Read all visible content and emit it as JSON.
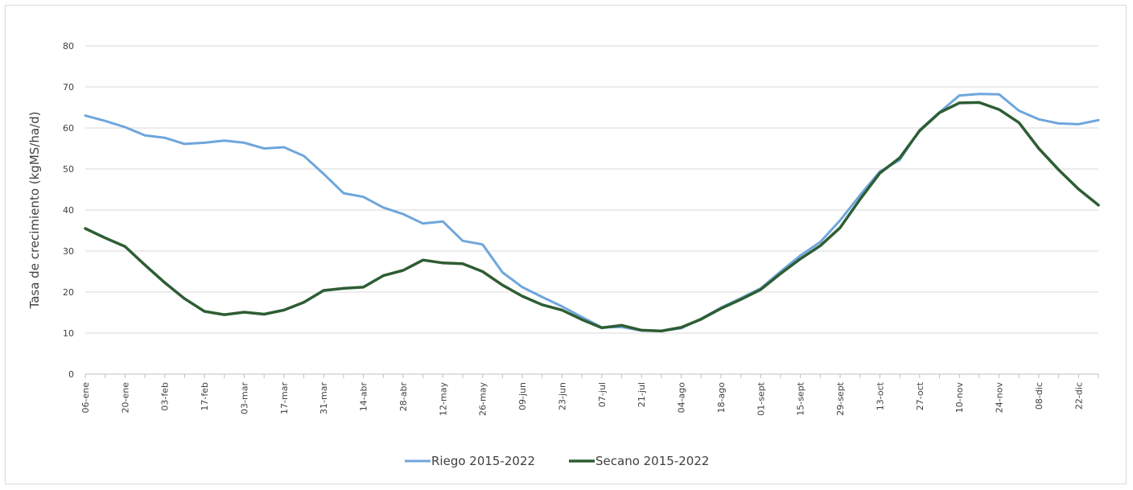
{
  "chart_data": {
    "type": "line",
    "title": "",
    "xlabel": "",
    "ylabel": "Tasa de crecimiento  (kgMS/ha/d)",
    "ylim": [
      0,
      80
    ],
    "yticks": [
      0,
      10,
      20,
      30,
      40,
      50,
      60,
      70,
      80
    ],
    "grid": "horizontal",
    "legend_position": "bottom",
    "x_tick_labels": [
      "06-ene",
      "20-ene",
      "03-feb",
      "17-feb",
      "03-mar",
      "17-mar",
      "31-mar",
      "14-abr",
      "28-abr",
      "12-may",
      "26-may",
      "09-jun",
      "23-jun",
      "07-jul",
      "21-jul",
      "04-ago",
      "18-ago",
      "01-sept",
      "15-sept",
      "29-sept",
      "13-oct",
      "27-oct",
      "10-nov",
      "24-nov",
      "08-dic",
      "22-dic"
    ],
    "series": [
      {
        "name": "Riego 2015-2022",
        "color": "#6fa6dc",
        "values": [
          63,
          61.7,
          60.2,
          58.2,
          57.6,
          56.1,
          56.4,
          56.9,
          56.4,
          55,
          55.3,
          53.2,
          48.8,
          44.1,
          43.2,
          40.6,
          39,
          36.7,
          37.2,
          32.5,
          31.6,
          24.8,
          21.2,
          18.8,
          16.5,
          13.9,
          11.4,
          11.5,
          10.6,
          10.5,
          11.2,
          13.5,
          16.2,
          18.5,
          20.9,
          25,
          28.9,
          32.2,
          37.5,
          43.6,
          49.4,
          52.2,
          59.5,
          63.8,
          67.9,
          68.3,
          68.2,
          64.2,
          62.1,
          61.1,
          60.9,
          61.9
        ]
      },
      {
        "name": "Secano 2015-2022",
        "color": "#2e5d33",
        "values": [
          35.5,
          33.2,
          31.1,
          26.6,
          22.3,
          18.4,
          15.3,
          14.5,
          15.1,
          14.6,
          15.6,
          17.5,
          20.4,
          20.9,
          21.2,
          24,
          25.3,
          27.8,
          27.1,
          26.9,
          25,
          21.7,
          19,
          16.9,
          15.6,
          13.3,
          11.3,
          11.9,
          10.7,
          10.5,
          11.4,
          13.4,
          16,
          18.2,
          20.6,
          24.5,
          28.1,
          31.3,
          35.7,
          42.6,
          49,
          52.7,
          59.3,
          63.7,
          66.1,
          66.2,
          64.5,
          61.3,
          55,
          49.8,
          45.1,
          41.2
        ]
      }
    ]
  }
}
